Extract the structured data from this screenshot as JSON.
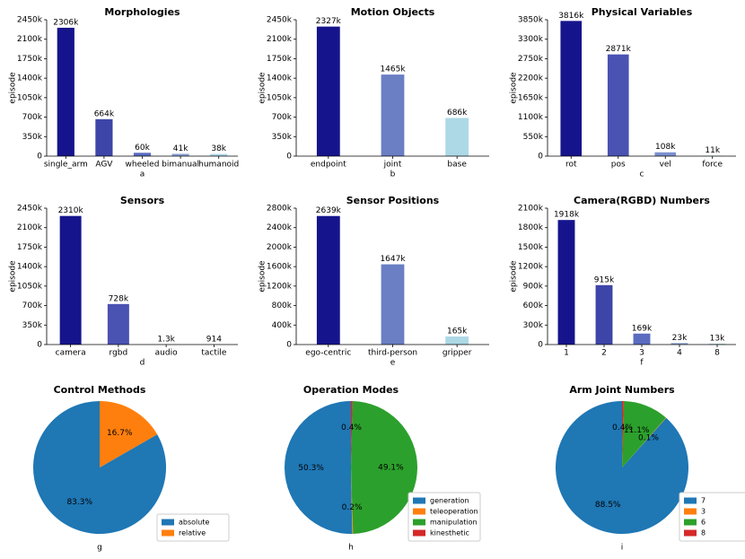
{
  "chart_data": [
    {
      "type": "bar",
      "title": "Morphologies",
      "xlabel": "a",
      "ylabel": "episode",
      "categories": [
        "single_arm",
        "AGV",
        "wheeled",
        "bimanual",
        "humanoid"
      ],
      "values": [
        2306000,
        664000,
        60000,
        41000,
        38000
      ],
      "value_labels": [
        "2306k",
        "664k",
        "60k",
        "41k",
        "38k"
      ],
      "colors": [
        "#16148c",
        "#3d45a8",
        "#5a6cc0",
        "#8a9fd4",
        "#a9d6e6"
      ],
      "ylim": [
        0,
        2450000
      ],
      "yticks": [
        0,
        {
          "value": 350000,
          "label": "350k"
        },
        {
          "value": 700000,
          "label": "700k"
        },
        {
          "value": 1050000,
          "label": "1050k"
        },
        {
          "value": 1400000,
          "label": "1400k"
        },
        {
          "value": 1750000,
          "label": "1750k"
        },
        {
          "value": 2100000,
          "label": "2100k"
        },
        {
          "value": 2450000,
          "label": "2450k"
        }
      ]
    },
    {
      "type": "bar",
      "title": "Motion Objects",
      "xlabel": "b",
      "ylabel": "episode",
      "categories": [
        "endpoint",
        "joint",
        "base"
      ],
      "values": [
        2327000,
        1465000,
        686000
      ],
      "value_labels": [
        "2327k",
        "1465k",
        "686k"
      ],
      "colors": [
        "#16148c",
        "#6a7fc4",
        "#add8e6"
      ],
      "ylim": [
        0,
        2450000
      ],
      "yticks": [
        0,
        {
          "value": 350000,
          "label": "350k"
        },
        {
          "value": 700000,
          "label": "700k"
        },
        {
          "value": 1050000,
          "label": "1050k"
        },
        {
          "value": 1400000,
          "label": "1400k"
        },
        {
          "value": 1750000,
          "label": "1750k"
        },
        {
          "value": 2100000,
          "label": "2100k"
        },
        {
          "value": 2450000,
          "label": "2450k"
        }
      ]
    },
    {
      "type": "bar",
      "title": "Physical Variables",
      "xlabel": "c",
      "ylabel": "episode",
      "categories": [
        "rot",
        "pos",
        "vel",
        "force"
      ],
      "values": [
        3816000,
        2871000,
        108000,
        11000
      ],
      "value_labels": [
        "3816k",
        "2871k",
        "108k",
        "11k"
      ],
      "colors": [
        "#16148c",
        "#4a52b2",
        "#7b90d0",
        "#add8e6"
      ],
      "ylim": [
        0,
        3850000
      ],
      "yticks": [
        0,
        {
          "value": 550000,
          "label": "550k"
        },
        {
          "value": 1100000,
          "label": "1100k"
        },
        {
          "value": 1650000,
          "label": "1650k"
        },
        {
          "value": 2200000,
          "label": "2200k"
        },
        {
          "value": 2750000,
          "label": "2750k"
        },
        {
          "value": 3300000,
          "label": "3300k"
        },
        {
          "value": 3850000,
          "label": "3850k"
        }
      ]
    },
    {
      "type": "bar",
      "title": "Sensors",
      "xlabel": "d",
      "ylabel": "episode",
      "categories": [
        "camera",
        "rgbd",
        "audio",
        "tactile"
      ],
      "values": [
        2310000,
        728000,
        1300,
        914
      ],
      "value_labels": [
        "2310k",
        "728k",
        "1.3k",
        "914"
      ],
      "colors": [
        "#16148c",
        "#4a52b2",
        "#7b90d0",
        "#add8e6"
      ],
      "ylim": [
        0,
        2450000
      ],
      "yticks": [
        0,
        {
          "value": 350000,
          "label": "350k"
        },
        {
          "value": 700000,
          "label": "700k"
        },
        {
          "value": 1050000,
          "label": "1050k"
        },
        {
          "value": 1400000,
          "label": "1400k"
        },
        {
          "value": 1750000,
          "label": "1750k"
        },
        {
          "value": 2100000,
          "label": "2100k"
        },
        {
          "value": 2450000,
          "label": "2450k"
        }
      ]
    },
    {
      "type": "bar",
      "title": "Sensor Positions",
      "xlabel": "e",
      "ylabel": "episode",
      "categories": [
        "ego-centric",
        "third-person",
        "gripper"
      ],
      "values": [
        2639000,
        1647000,
        165000
      ],
      "value_labels": [
        "2639k",
        "1647k",
        "165k"
      ],
      "colors": [
        "#16148c",
        "#6a7fc4",
        "#add8e6"
      ],
      "ylim": [
        0,
        2800000
      ],
      "yticks": [
        0,
        {
          "value": 400000,
          "label": "400k"
        },
        {
          "value": 800000,
          "label": "800k"
        },
        {
          "value": 1200000,
          "label": "1200k"
        },
        {
          "value": 1600000,
          "label": "1600k"
        },
        {
          "value": 2000000,
          "label": "2000k"
        },
        {
          "value": 2400000,
          "label": "2400k"
        },
        {
          "value": 2800000,
          "label": "2800k"
        }
      ]
    },
    {
      "type": "bar",
      "title": "Camera(RGBD) Numbers",
      "xlabel": "f",
      "ylabel": "episode",
      "categories": [
        "1",
        "2",
        "3",
        "4",
        "8"
      ],
      "values": [
        1918000,
        915000,
        169000,
        23000,
        13000
      ],
      "value_labels": [
        "1918k",
        "915k",
        "169k",
        "23k",
        "13k"
      ],
      "colors": [
        "#16148c",
        "#3d45a8",
        "#5a6cc0",
        "#8a9fd4",
        "#a9d6e6"
      ],
      "ylim": [
        0,
        2100000
      ],
      "yticks": [
        0,
        {
          "value": 300000,
          "label": "300k"
        },
        {
          "value": 600000,
          "label": "600k"
        },
        {
          "value": 900000,
          "label": "900k"
        },
        {
          "value": 1200000,
          "label": "1200k"
        },
        {
          "value": 1500000,
          "label": "1500k"
        },
        {
          "value": 1800000,
          "label": "1800k"
        },
        {
          "value": 2100000,
          "label": "2100k"
        }
      ]
    },
    {
      "type": "pie",
      "title": "Control Methods",
      "xlabel": "g",
      "categories": [
        "absolute",
        "relative"
      ],
      "values": [
        83.3,
        16.7
      ],
      "value_labels": [
        "83.3%",
        "16.7%"
      ],
      "colors": [
        "#1f77b4",
        "#ff7f0e"
      ],
      "legend": "lower right"
    },
    {
      "type": "pie",
      "title": "Operation Modes",
      "xlabel": "h",
      "categories": [
        "generation",
        "teleoperation",
        "manipulation",
        "kinesthetic"
      ],
      "values": [
        50.3,
        0.2,
        49.1,
        0.4
      ],
      "value_labels": [
        "50.3%",
        "0.2%",
        "49.1%",
        "0.4%"
      ],
      "colors": [
        "#1f77b4",
        "#ff7f0e",
        "#2ca02c",
        "#d62728"
      ],
      "legend": "lower right"
    },
    {
      "type": "pie",
      "title": "Arm Joint Numbers",
      "xlabel": "i",
      "categories": [
        "7",
        "3",
        "6",
        "8"
      ],
      "values": [
        88.5,
        0.1,
        11.1,
        0.4
      ],
      "value_labels": [
        "88.5%",
        "0.1%",
        "11.1%",
        "0.4%"
      ],
      "colors": [
        "#1f77b4",
        "#ff7f0e",
        "#2ca02c",
        "#d62728"
      ],
      "legend": "lower right"
    }
  ]
}
